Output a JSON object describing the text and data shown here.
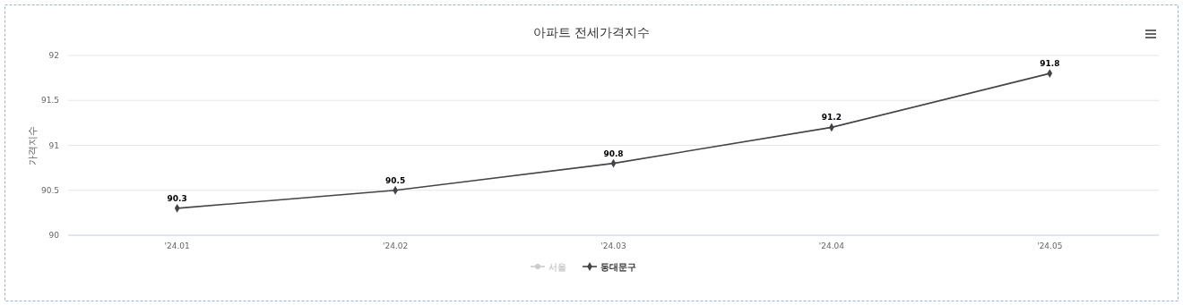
{
  "chart_data": {
    "type": "line",
    "title": "아파트 전세가격지수",
    "ylabel": "가격지수",
    "categories": [
      "'24.01",
      "'24.02",
      "'24.03",
      "'24.04",
      "'24.05"
    ],
    "series": [
      {
        "name": "서울",
        "color": "#cccccc",
        "values": [
          null,
          null,
          null,
          null,
          null
        ],
        "marker": "circle"
      },
      {
        "name": "동대문구",
        "color": "#434348",
        "values": [
          90.3,
          90.5,
          90.8,
          91.2,
          91.8
        ]
      }
    ],
    "ylim": [
      90,
      92
    ],
    "yticks": [
      90,
      90.5,
      91,
      91.5,
      92
    ],
    "grid": "y",
    "legend": "bottom",
    "data_labels": true,
    "marker": "diamond",
    "line_style": "solid"
  }
}
